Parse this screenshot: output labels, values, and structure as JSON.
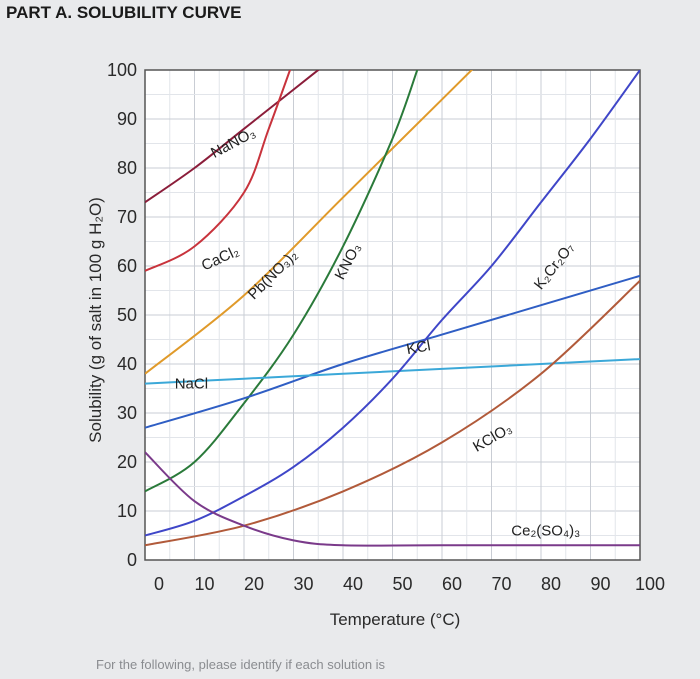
{
  "page": {
    "heading": "PART A. SOLUBILITY CURVE",
    "footer": "For the following, please identify if each solution is"
  },
  "chart_data": {
    "type": "line",
    "title": "",
    "xlabel": "Temperature (°C)",
    "ylabel": "Solubility (g of salt in 100 g H₂O)",
    "xlim": [
      0,
      100
    ],
    "ylim": [
      0,
      100
    ],
    "x_ticks": [
      0,
      10,
      20,
      30,
      40,
      50,
      60,
      70,
      80,
      90,
      100
    ],
    "y_ticks": [
      0,
      10,
      20,
      30,
      40,
      50,
      60,
      70,
      80,
      90,
      100
    ],
    "grid": true,
    "series": [
      {
        "name": "NaNO₃",
        "color": "#8b1d3a",
        "label_x": 14,
        "label_y": 82,
        "label_angle": -28,
        "points": [
          [
            0,
            73
          ],
          [
            10,
            80
          ],
          [
            20,
            88
          ],
          [
            30,
            96
          ],
          [
            40,
            104
          ]
        ]
      },
      {
        "name": "CaCl₂",
        "color": "#c8333c",
        "label_x": 12,
        "label_y": 59,
        "label_angle": -25,
        "points": [
          [
            0,
            59
          ],
          [
            10,
            64
          ],
          [
            20,
            75
          ],
          [
            25,
            88
          ],
          [
            30,
            102
          ]
        ]
      },
      {
        "name": "Pb(NO₃)₂",
        "color": "#e09a2a",
        "label_x": 22,
        "label_y": 53,
        "label_angle": -45,
        "points": [
          [
            0,
            38
          ],
          [
            20,
            54
          ],
          [
            40,
            74
          ],
          [
            60,
            94
          ],
          [
            70,
            104
          ]
        ]
      },
      {
        "name": "KNO₃",
        "color": "#2a7a3a",
        "label_x": 40,
        "label_y": 57,
        "label_angle": -62,
        "points": [
          [
            0,
            14
          ],
          [
            10,
            20
          ],
          [
            20,
            32
          ],
          [
            30,
            46
          ],
          [
            40,
            64
          ],
          [
            50,
            86
          ],
          [
            55,
            100
          ]
        ]
      },
      {
        "name": "KCl",
        "color": "#2f5ec4",
        "label_x": 53,
        "label_y": 42,
        "label_angle": -10,
        "points": [
          [
            0,
            27
          ],
          [
            20,
            33
          ],
          [
            40,
            40
          ],
          [
            60,
            46
          ],
          [
            80,
            52
          ],
          [
            100,
            58
          ]
        ]
      },
      {
        "name": "NaCl",
        "color": "#3ba8d8",
        "label_x": 6,
        "label_y": 35,
        "label_angle": 0,
        "points": [
          [
            0,
            36
          ],
          [
            20,
            37
          ],
          [
            40,
            38
          ],
          [
            60,
            39
          ],
          [
            80,
            40
          ],
          [
            100,
            41
          ]
        ]
      },
      {
        "name": "K₂Cr₂O₇",
        "color": "#3f46c8",
        "label_x": 80,
        "label_y": 55,
        "label_angle": -52,
        "points": [
          [
            0,
            5
          ],
          [
            10,
            8
          ],
          [
            20,
            13
          ],
          [
            30,
            19
          ],
          [
            40,
            27
          ],
          [
            50,
            37
          ],
          [
            60,
            49
          ],
          [
            70,
            60
          ],
          [
            80,
            73
          ],
          [
            90,
            86
          ],
          [
            100,
            100
          ]
        ]
      },
      {
        "name": "KClO₃",
        "color": "#b15a3a",
        "label_x": 67,
        "label_y": 22,
        "label_angle": -30,
        "points": [
          [
            0,
            3
          ],
          [
            20,
            7
          ],
          [
            40,
            14
          ],
          [
            60,
            24
          ],
          [
            80,
            38
          ],
          [
            100,
            57
          ]
        ]
      },
      {
        "name": "Ce₂(SO₄)₃",
        "color": "#7a3a8a",
        "label_x": 74,
        "label_y": 5,
        "label_angle": 0,
        "points": [
          [
            0,
            22
          ],
          [
            10,
            12
          ],
          [
            20,
            7
          ],
          [
            30,
            4
          ],
          [
            40,
            3
          ],
          [
            60,
            3
          ],
          [
            100,
            3
          ]
        ]
      }
    ]
  }
}
